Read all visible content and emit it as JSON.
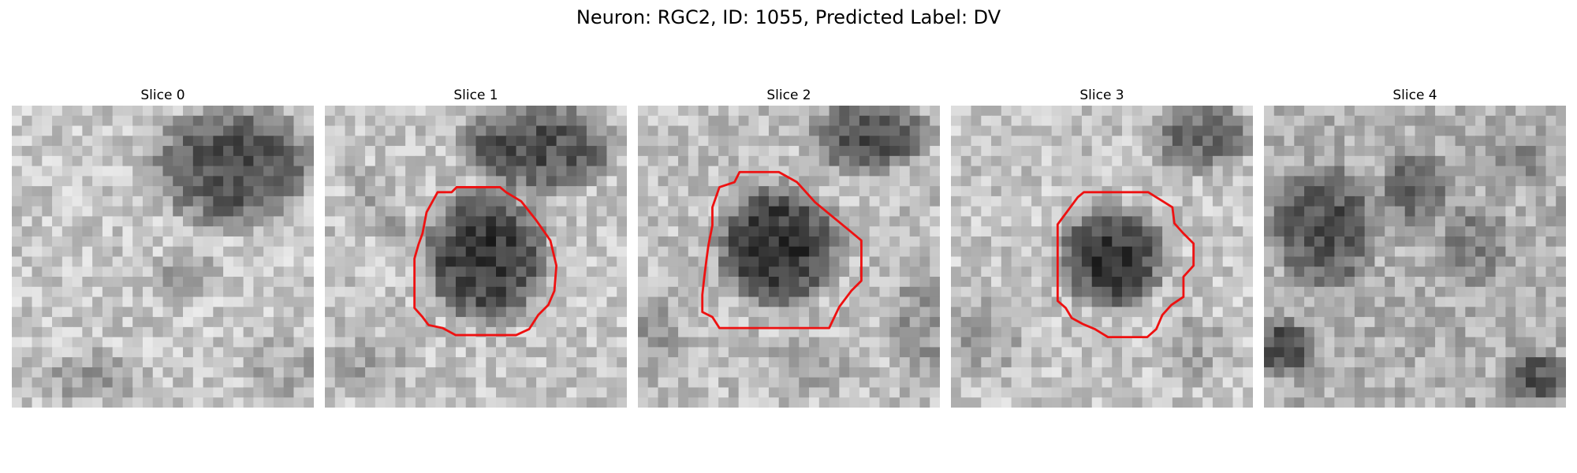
{
  "figure": {
    "title": "Neuron: RGC2, ID: 1055, Predicted Label: DV",
    "contour_color": "#ee1111",
    "panels": [
      {
        "title": "Slice 0",
        "has_contour": false
      },
      {
        "title": "Slice 1",
        "has_contour": true
      },
      {
        "title": "Slice 2",
        "has_contour": true
      },
      {
        "title": "Slice 3",
        "has_contour": true
      },
      {
        "title": "Slice 4",
        "has_contour": false
      }
    ]
  }
}
